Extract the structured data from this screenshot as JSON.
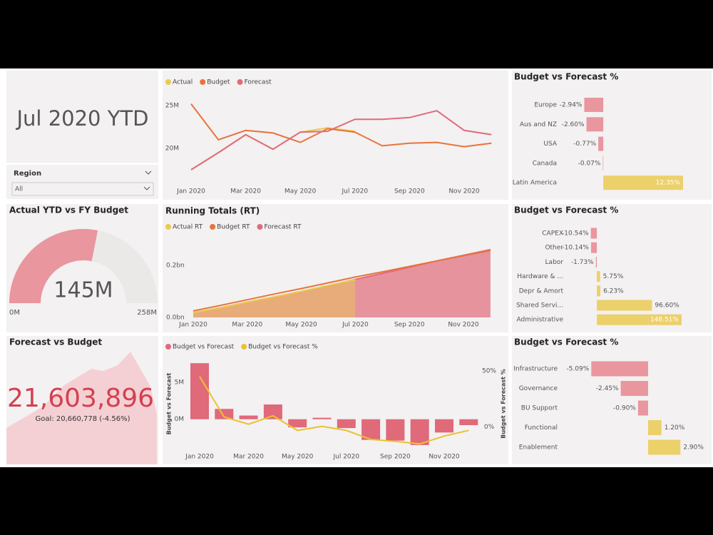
{
  "ytd_card": {
    "title": "Jul 2020 YTD"
  },
  "slicer": {
    "label": "Region",
    "value": "All"
  },
  "kpi": {
    "title": "Forecast vs Budget",
    "value": "21,603,896",
    "goal": "Goal: 20,660,778 (-4.56%)"
  },
  "chart_data": [
    {
      "type": "line",
      "categories": [
        "Jan 2020",
        null,
        "Mar 2020",
        null,
        "May 2020",
        null,
        "Jul 2020",
        null,
        "Sep 2020",
        null,
        "Nov 2020",
        null
      ],
      "ylim": [
        16.5,
        26.5
      ],
      "yticks": [
        {
          "value": 20,
          "label": "20M"
        },
        {
          "value": 25,
          "label": "25M"
        }
      ],
      "series": [
        {
          "name": "Actual",
          "color": "#ecc94f",
          "values": [
            17.5,
            19.5,
            21.6,
            19.9,
            21.9,
            22.4,
            22.0,
            null,
            null,
            null,
            null,
            null
          ]
        },
        {
          "name": "Budget",
          "color": "#e8733c",
          "values": [
            25.2,
            21.0,
            22.1,
            21.8,
            20.7,
            22.3,
            21.9,
            20.3,
            20.6,
            20.7,
            20.2,
            20.6
          ]
        },
        {
          "name": "Forecast",
          "color": "#e06b79",
          "values": [
            17.5,
            19.5,
            21.6,
            19.9,
            21.9,
            22.0,
            23.4,
            23.4,
            23.6,
            24.4,
            22.1,
            21.6
          ]
        }
      ]
    },
    {
      "type": "area",
      "title": "Running Totals (RT)",
      "categories": [
        "Jan 2020",
        null,
        "Mar 2020",
        null,
        "May 2020",
        null,
        "Jul 2020",
        null,
        "Sep 2020",
        null,
        "Nov 2020",
        null
      ],
      "ylim": [
        0,
        0.37
      ],
      "yticks": [
        {
          "value": 0,
          "label": "0.0bn"
        },
        {
          "value": 0.2,
          "label": "0.2bn"
        }
      ],
      "series": [
        {
          "name": "Actual RT",
          "color": "#ecc94f",
          "values": [
            0.018,
            0.037,
            0.059,
            0.079,
            0.1,
            0.123,
            0.145,
            null,
            null,
            null,
            null,
            null
          ]
        },
        {
          "name": "Budget RT",
          "color": "#e8733c",
          "values": [
            0.025,
            0.046,
            0.068,
            0.09,
            0.111,
            0.133,
            0.155,
            0.175,
            0.196,
            0.217,
            0.237,
            0.257
          ]
        },
        {
          "name": "Forecast RT",
          "color": "#e06b79",
          "values": [
            0.018,
            0.037,
            0.059,
            0.079,
            0.1,
            0.122,
            0.146,
            0.169,
            0.193,
            0.217,
            0.239,
            0.261
          ]
        }
      ]
    },
    {
      "type": "combo",
      "categories": [
        "Jan 2020",
        null,
        "Mar 2020",
        null,
        "May 2020",
        null,
        "Jul 2020",
        null,
        "Sep 2020",
        null,
        "Nov 2020",
        null
      ],
      "ylabel": "Budget vs Forecast",
      "y2label": "Budget vs Forecast %",
      "ylim": [
        -3.8,
        8
      ],
      "yticks": [
        {
          "value": 0,
          "label": "0M"
        },
        {
          "value": 5,
          "label": "5M"
        }
      ],
      "y2lim": [
        -18,
        59.5
      ],
      "y2ticks": [
        {
          "value": 0,
          "label": "0%"
        },
        {
          "value": 50,
          "label": "50%"
        }
      ],
      "series": [
        {
          "name": "Budget vs Forecast",
          "color": "#e0697a",
          "values": [
            7.6,
            1.4,
            0.5,
            2.0,
            -1.1,
            0.2,
            -1.2,
            -2.8,
            -2.9,
            -3.5,
            -1.8,
            -0.8
          ]
        },
        {
          "name": "Budget vs Forecast %",
          "color": "#ebc230",
          "axis": "y2",
          "values": [
            45,
            9,
            2.5,
            10,
            -3,
            0.6,
            -3,
            -11,
            -12.7,
            -15,
            -8,
            -3
          ]
        }
      ]
    },
    {
      "type": "gauge",
      "title": "Actual YTD vs FY Budget",
      "value": 145,
      "value_label": "145M",
      "min": 0,
      "min_label": "0M",
      "max": 258,
      "max_label": "258M",
      "color": "#e9969f"
    },
    {
      "type": "hbar",
      "title": "Budget vs Forecast %",
      "categories": [
        "Europe",
        "Aus and NZ",
        "USA",
        "Canada",
        "Latin America"
      ],
      "values": [
        -2.94,
        -2.6,
        -0.77,
        -0.07,
        12.35
      ],
      "value_labels": [
        "-2.94%",
        "-2.60%",
        "-0.77%",
        "-0.07%",
        "12.35%"
      ],
      "xlim": [
        -7.3,
        13.9
      ],
      "negative_color": "#e9969f",
      "positive_color": "#ecd06a"
    },
    {
      "type": "hbar",
      "title": "Budget vs Forecast %",
      "categories": [
        "CAPEX",
        "Other",
        "Labor",
        "Hardware & ...",
        "Depr & Amort",
        "Shared Servi...",
        "Administrative"
      ],
      "values": [
        -10.54,
        -10.14,
        -1.73,
        5.75,
        6.23,
        96.6,
        148.51
      ],
      "value_labels": [
        "-10.54%",
        "-10.14%",
        "-1.73%",
        "5.75%",
        "6.23%",
        "96.60%",
        "148.51%"
      ],
      "xlim": [
        -58.8,
        166
      ],
      "negative_color": "#e9969f",
      "positive_color": "#ecd06a"
    },
    {
      "type": "hbar",
      "title": "Budget vs Forecast %",
      "categories": [
        "Infrastructure",
        "Governance",
        "BU Support",
        "Functional",
        "Enablement"
      ],
      "values": [
        -5.09,
        -2.45,
        -0.9,
        1.2,
        2.9
      ],
      "value_labels": [
        "-5.09%",
        "-2.45%",
        "-0.90%",
        "1.20%",
        "2.90%"
      ],
      "xlim": [
        -7.6,
        3.9
      ],
      "negative_color": "#e9969f",
      "positive_color": "#ecd06a"
    }
  ]
}
